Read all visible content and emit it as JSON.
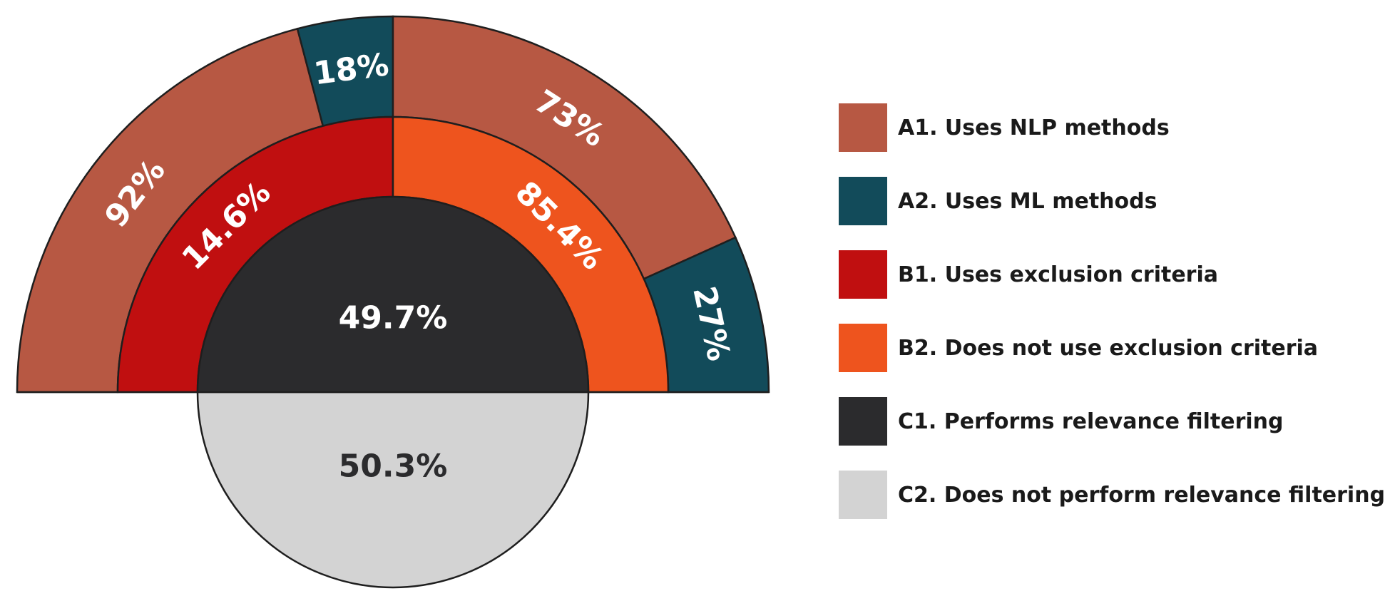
{
  "chart_data": {
    "type": "pie",
    "rings": [
      {
        "ring": "A",
        "arc": "upper-half",
        "groups": [
          {
            "half": "left",
            "segments": [
              {
                "key": "A1",
                "value": 92,
                "label": "92%",
                "color": "#b75843"
              },
              {
                "key": "A2",
                "value": 18,
                "label": "18%",
                "color": "#124b5a"
              }
            ]
          },
          {
            "half": "right",
            "segments": [
              {
                "key": "A1",
                "value": 73,
                "label": "73%",
                "color": "#b75843"
              },
              {
                "key": "A2",
                "value": 27,
                "label": "27%",
                "color": "#124b5a"
              }
            ]
          }
        ]
      },
      {
        "ring": "B",
        "arc": "upper-half",
        "segments": [
          {
            "key": "B1",
            "value": 14.6,
            "label": "14.6%",
            "color": "#c00f10"
          },
          {
            "key": "B2",
            "value": 85.4,
            "label": "85.4%",
            "color": "#ee541e"
          }
        ]
      },
      {
        "ring": "C",
        "arc": "full-circle",
        "segments": [
          {
            "key": "C1",
            "value": 49.7,
            "label": "49.7%",
            "color": "#2b2b2d",
            "label_color": "#ffffff",
            "position": "top"
          },
          {
            "key": "C2",
            "value": 50.3,
            "label": "50.3%",
            "color": "#d3d3d3",
            "label_color": "#2b2b2d",
            "position": "bottom"
          }
        ]
      }
    ],
    "legend": [
      {
        "key": "A1",
        "label": "A1. Uses NLP methods",
        "color": "#b75843"
      },
      {
        "key": "A2",
        "label": "A2. Uses ML methods",
        "color": "#124b5a"
      },
      {
        "key": "B1",
        "label": "B1. Uses exclusion criteria",
        "color": "#c00f10"
      },
      {
        "key": "B2",
        "label": "B2. Does not use exclusion criteria",
        "color": "#ee541e"
      },
      {
        "key": "C1",
        "label": "C1. Performs relevance filtering",
        "color": "#2b2b2d"
      },
      {
        "key": "C2",
        "label": "C2. Does not perform relevance filtering",
        "color": "#d3d3d3"
      }
    ],
    "legend_position": "right",
    "outline_color": "#1e1e1e",
    "label_color": "#ffffff"
  }
}
